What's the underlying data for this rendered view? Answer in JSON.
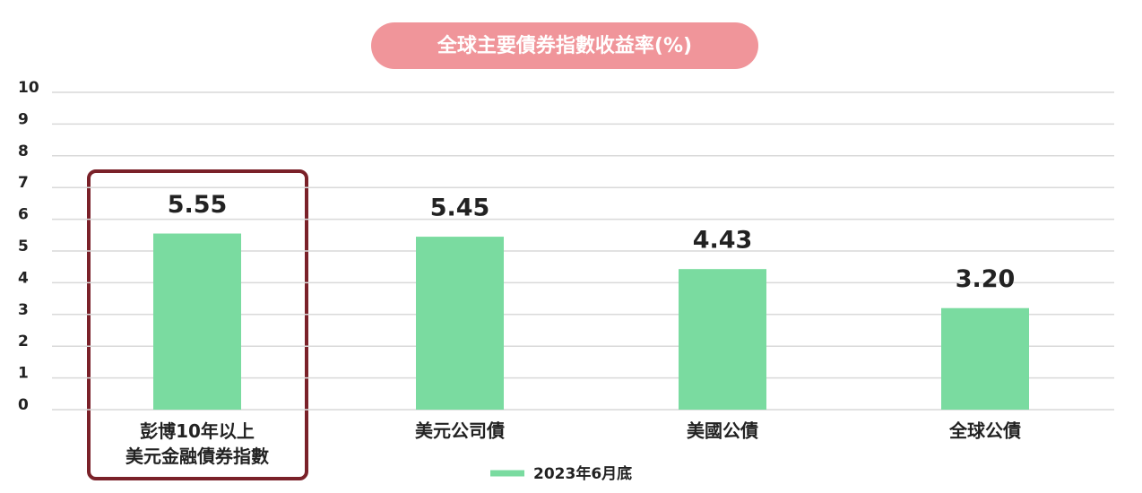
{
  "chart_data": {
    "type": "bar",
    "title": "全球主要債券指數收益率(%)",
    "categories": [
      "彭博10年以上\n美元金融債券指數",
      "美元公司債",
      "美國公債",
      "全球公債"
    ],
    "series": [
      {
        "name": "2023年6月底",
        "color": "#7adba0",
        "values": [
          5.55,
          5.45,
          4.43,
          3.2
        ],
        "value_labels": [
          "5.55",
          "5.45",
          "4.43",
          "3.20"
        ]
      }
    ],
    "ylim": [
      0,
      10
    ],
    "yticks": [
      0,
      1,
      2,
      3,
      4,
      5,
      6,
      7,
      8,
      9,
      10
    ],
    "grid": true
  }
}
